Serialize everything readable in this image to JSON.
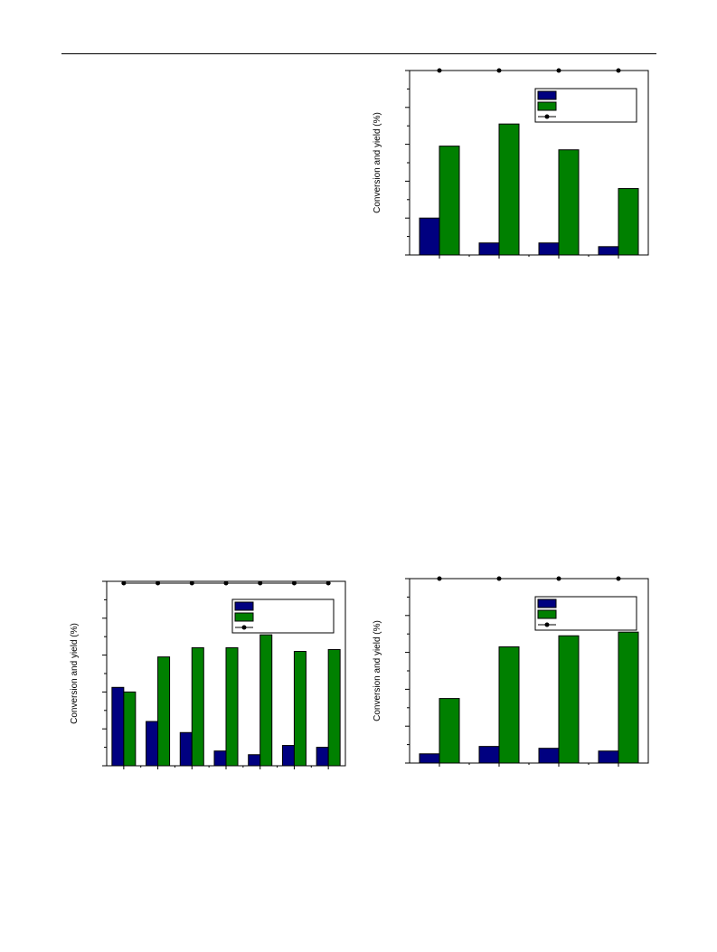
{
  "colors": {
    "bar_blue": "#000080",
    "bar_green": "#008000",
    "line": "#000000"
  },
  "chart_data": [
    {
      "type": "bar",
      "ylabel": "Conversion and yield (%)",
      "ylim": [
        0,
        100
      ],
      "categories": [
        "",
        "",
        "",
        ""
      ],
      "series": [
        {
          "kind": "bar",
          "color": "bar_blue",
          "values": [
            20,
            6.5,
            6.5,
            4.5
          ]
        },
        {
          "kind": "bar",
          "color": "bar_green",
          "values": [
            59,
            71,
            57,
            36
          ]
        },
        {
          "kind": "line",
          "color": "line",
          "values": [
            100,
            100,
            100,
            100
          ]
        }
      ],
      "legend": "top-right"
    },
    {
      "type": "bar",
      "ylabel": "Conversion and yield (%)",
      "ylim": [
        0,
        100
      ],
      "categories": [
        "",
        "",
        "",
        "",
        "",
        "",
        ""
      ],
      "series": [
        {
          "kind": "bar",
          "color": "bar_blue",
          "values": [
            42.5,
            24,
            18,
            8,
            6,
            11,
            10
          ]
        },
        {
          "kind": "bar",
          "color": "bar_green",
          "values": [
            40,
            59,
            64,
            64,
            71,
            62,
            63
          ]
        },
        {
          "kind": "line",
          "color": "line",
          "values": [
            99,
            99,
            99,
            99,
            99,
            99,
            99
          ]
        }
      ],
      "legend": "top-right"
    },
    {
      "type": "bar",
      "ylabel": "Conversion and yield (%)",
      "ylim": [
        0,
        100
      ],
      "categories": [
        "",
        "",
        "",
        ""
      ],
      "series": [
        {
          "kind": "bar",
          "color": "bar_blue",
          "values": [
            5,
            9,
            8,
            6.5
          ]
        },
        {
          "kind": "bar",
          "color": "bar_green",
          "values": [
            35,
            63,
            69,
            71
          ]
        },
        {
          "kind": "line",
          "color": "line",
          "values": [
            100,
            100,
            100,
            100
          ]
        }
      ],
      "legend": "top-right"
    }
  ]
}
